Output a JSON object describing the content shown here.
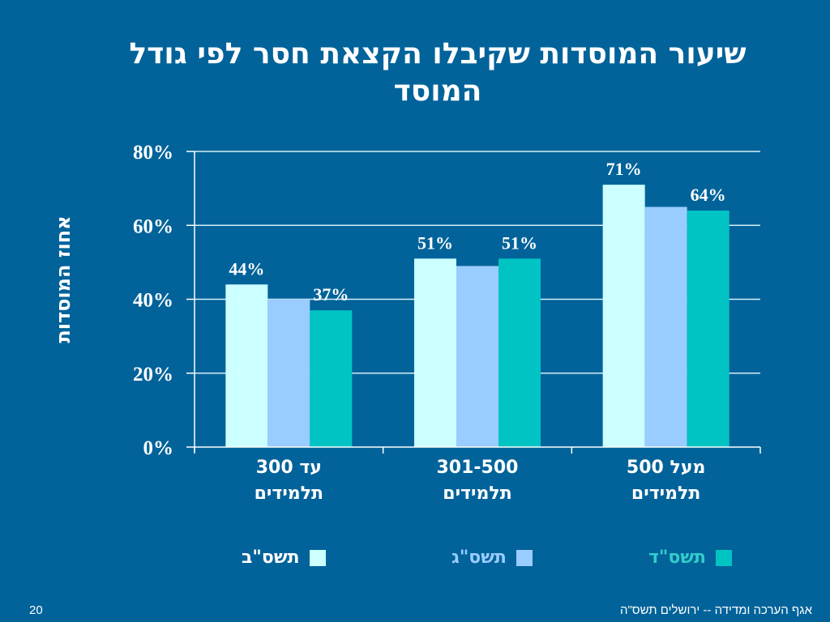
{
  "slide": {
    "title": "שיעור המוסדות שקיבלו הקצאת חסר לפי גודל המוסד",
    "footer": "אגף הערכה ומדידה -- ירושלים תשס\"ה",
    "page_number": "20"
  },
  "chart_data": {
    "type": "bar",
    "title": "שיעור המוסדות שקיבלו הקצאת חסר לפי גודל המוסד",
    "xlabel": "",
    "ylabel": "אחוז המוסדות",
    "ylim": [
      0,
      80
    ],
    "yticks": [
      0,
      20,
      40,
      60,
      80
    ],
    "ytick_labels": [
      "0%",
      "20%",
      "40%",
      "60%",
      "80%"
    ],
    "grid": true,
    "categories": [
      {
        "line1": "עד 300",
        "line2": "תלמידים"
      },
      {
        "line1": "301-500",
        "line2": "תלמידים"
      },
      {
        "line1": "מעל 500",
        "line2": "תלמידים"
      }
    ],
    "legend_position": "bottom",
    "series": [
      {
        "name": "תשס\"ב",
        "color": "#ccffff",
        "label_color": "#ffffff",
        "values": [
          44,
          51,
          71
        ],
        "data_labels": [
          "44%",
          "51%",
          "71%"
        ]
      },
      {
        "name": "תשס\"ג",
        "color": "#99ccff",
        "label_color": "#99ccff",
        "values": [
          40,
          49,
          65
        ],
        "data_labels": [
          null,
          null,
          null
        ]
      },
      {
        "name": "תשס\"ד",
        "color": "#00c4c4",
        "label_color": "#33cccc",
        "values": [
          37,
          51,
          64
        ],
        "data_labels": [
          "37%",
          "51%",
          "64%"
        ]
      }
    ]
  }
}
